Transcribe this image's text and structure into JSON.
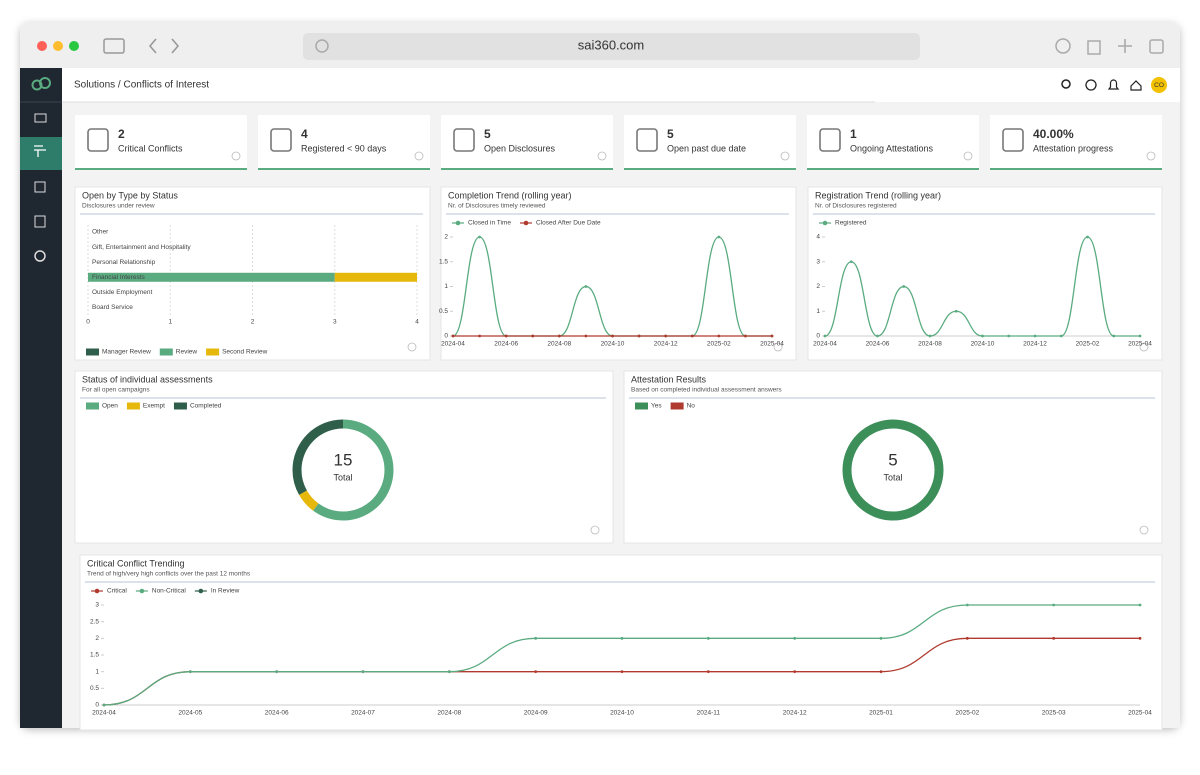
{
  "browser": {
    "url": "sai360.com"
  },
  "breadcrumb": "Solutions / Conflicts of Interest",
  "user_initials": "CO",
  "kpis": [
    {
      "value": "2",
      "label": "Critical Conflicts"
    },
    {
      "value": "4",
      "label": "Registered < 90 days"
    },
    {
      "value": "5",
      "label": "Open Disclosures"
    },
    {
      "value": "5",
      "label": "Open past due date"
    },
    {
      "value": "1",
      "label": "Ongoing Attestations"
    },
    {
      "value": "40.00%",
      "label": "Attestation progress"
    }
  ],
  "chart_data": [
    {
      "type": "bar",
      "orientation": "horizontal",
      "stacked": true,
      "title": "Open by Type by Status",
      "subtitle": "Disclosures under review",
      "categories": [
        "Other",
        "Gift, Entertainment and Hospitality",
        "Personal Relationship",
        "Financial Interests",
        "Outside Employment",
        "Board Service"
      ],
      "series": [
        {
          "name": "Manager Review",
          "color": "#2f5f4b",
          "values": [
            0,
            0,
            0,
            0,
            0,
            0
          ]
        },
        {
          "name": "Review",
          "color": "#5aab80",
          "values": [
            0,
            0,
            0,
            3,
            0,
            0
          ]
        },
        {
          "name": "Second Review",
          "color": "#e5b80b",
          "values": [
            0,
            0,
            0,
            1,
            0,
            0
          ]
        }
      ],
      "xlim": [
        0,
        4
      ],
      "xticks": [
        0,
        1,
        2,
        3,
        4
      ],
      "grid": true
    },
    {
      "type": "line",
      "title": "Completion Trend (rolling year)",
      "subtitle": "Nr. of Disclosures timely reviewed",
      "categories": [
        "2024-04",
        null,
        "2024-06",
        null,
        "2024-08",
        null,
        "2024-10",
        null,
        "2024-12",
        null,
        "2025-02",
        null,
        "2025-04"
      ],
      "series": [
        {
          "name": "Closed in Time",
          "color": "#5aab80",
          "values": [
            0,
            2,
            0,
            0,
            0,
            1,
            0,
            0,
            0,
            0,
            2,
            0,
            0
          ]
        },
        {
          "name": "Closed After Due Date",
          "color": "#b03a2e",
          "values": [
            0,
            0,
            0,
            0,
            0,
            0,
            0,
            0,
            0,
            0,
            0,
            0,
            0
          ]
        }
      ],
      "ylim": [
        0,
        2
      ],
      "yticks": [
        0,
        0.5,
        1,
        1.5,
        2
      ],
      "smooth": true
    },
    {
      "type": "line",
      "title": "Registration Trend (rolling year)",
      "subtitle": "Nr. of Disclosures registered",
      "categories": [
        "2024-04",
        null,
        "2024-06",
        null,
        "2024-08",
        null,
        "2024-10",
        null,
        "2024-12",
        null,
        "2025-02",
        null,
        "2025-04"
      ],
      "series": [
        {
          "name": "Registered",
          "color": "#5aab80",
          "values": [
            0,
            3,
            0,
            2,
            0,
            1,
            0,
            0,
            0,
            0,
            4,
            0,
            0
          ]
        }
      ],
      "ylim": [
        0,
        4
      ],
      "yticks": [
        0,
        1,
        2,
        3,
        4
      ],
      "smooth": true
    },
    {
      "type": "donut",
      "title": "Status of individual assessments",
      "subtitle": "For all open campaigns",
      "categories": [
        "Open",
        "Exempt",
        "Completed"
      ],
      "values": [
        9,
        1,
        5
      ],
      "colors": [
        "#5aab80",
        "#e5b80b",
        "#2f5f4b"
      ],
      "total": 15,
      "total_label": "Total"
    },
    {
      "type": "donut",
      "title": "Attestation Results",
      "subtitle": "Based on completed individual assessment answers",
      "categories": [
        "Yes",
        "No"
      ],
      "values": [
        5,
        0
      ],
      "colors": [
        "#3d8f5a",
        "#b03a2e"
      ],
      "total": 5,
      "total_label": "Total"
    },
    {
      "type": "line",
      "title": "Critical Conflict Trending",
      "subtitle": "Trend of high/very high conflicts over the past 12 months",
      "categories": [
        "2024-04",
        "2024-05",
        "2024-06",
        "2024-07",
        "2024-08",
        "2024-09",
        "2024-10",
        "2024-11",
        "2024-12",
        "2025-01",
        "2025-02",
        "2025-03",
        "2025-04"
      ],
      "series": [
        {
          "name": "Critical",
          "color": "#b03a2e",
          "values": [
            0,
            1,
            1,
            1,
            1,
            1,
            1,
            1,
            1,
            1,
            2,
            2,
            2
          ]
        },
        {
          "name": "Non-Critical",
          "color": "#5aab80",
          "values": [
            0,
            1,
            1,
            1,
            1,
            2,
            2,
            2,
            2,
            2,
            3,
            3,
            3
          ]
        },
        {
          "name": "In Review",
          "color": "#2f5f4b",
          "values": [
            null,
            null,
            null,
            null,
            null,
            null,
            null,
            null,
            null,
            null,
            null,
            null,
            null
          ]
        }
      ],
      "ylim": [
        0,
        3
      ],
      "yticks": [
        0,
        0.5,
        1,
        1.5,
        2,
        2.5,
        3
      ],
      "smooth": true
    }
  ]
}
